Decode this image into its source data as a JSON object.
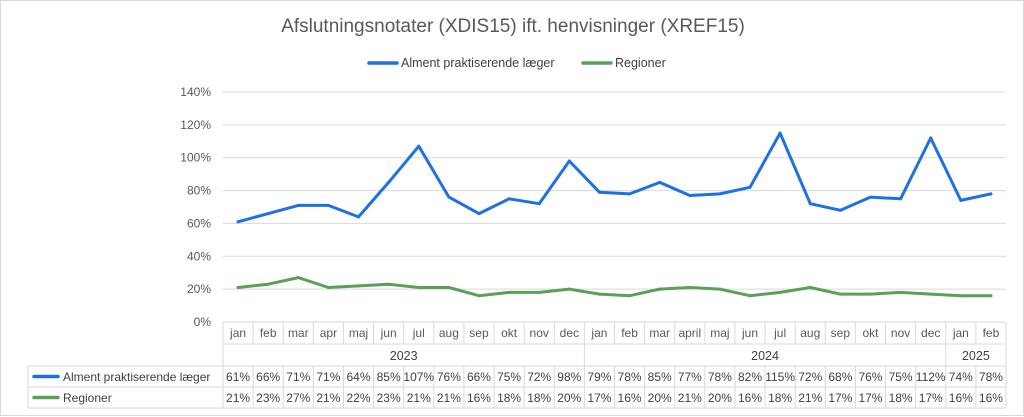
{
  "chart_data": {
    "type": "line",
    "title": "Afslutningsnotater (XDIS15) ift. henvisninger (XREF15)",
    "categories": [
      "jan",
      "feb",
      "mar",
      "apr",
      "maj",
      "jun",
      "jul",
      "aug",
      "sep",
      "okt",
      "nov",
      "dec",
      "jan",
      "feb",
      "mar",
      "april",
      "maj",
      "jun",
      "jul",
      "aug",
      "sep",
      "okt",
      "nov",
      "dec",
      "jan",
      "feb"
    ],
    "years": [
      {
        "label": "2023",
        "count": 12
      },
      {
        "label": "2024",
        "count": 12
      },
      {
        "label": "2025",
        "count": 2
      }
    ],
    "y_ticks": [
      "0%",
      "20%",
      "40%",
      "60%",
      "80%",
      "100%",
      "120%",
      "140%"
    ],
    "ylim": [
      0,
      140
    ],
    "grid": true,
    "legend_position": "top",
    "series": [
      {
        "name": "Alment praktiserende læger",
        "color": "#1f6fe5",
        "values": [
          61,
          66,
          71,
          71,
          64,
          85,
          107,
          76,
          66,
          75,
          72,
          98,
          79,
          78,
          85,
          77,
          78,
          82,
          115,
          72,
          68,
          76,
          75,
          112,
          74,
          78
        ],
        "labels": [
          "61%",
          "66%",
          "71%",
          "71%",
          "64%",
          "85%",
          "107%",
          "76%",
          "66%",
          "75%",
          "72%",
          "98%",
          "79%",
          "78%",
          "85%",
          "77%",
          "78%",
          "82%",
          "115%",
          "72%",
          "68%",
          "76%",
          "75%",
          "112%",
          "74%",
          "78%"
        ]
      },
      {
        "name": "Regioner",
        "color": "#5aa05a",
        "values": [
          21,
          23,
          27,
          21,
          22,
          23,
          21,
          21,
          16,
          18,
          18,
          20,
          17,
          16,
          20,
          21,
          20,
          16,
          18,
          21,
          17,
          17,
          18,
          17,
          16,
          16
        ],
        "labels": [
          "21%",
          "23%",
          "27%",
          "21%",
          "22%",
          "23%",
          "21%",
          "21%",
          "16%",
          "18%",
          "18%",
          "20%",
          "17%",
          "16%",
          "20%",
          "21%",
          "20%",
          "16%",
          "18%",
          "21%",
          "17%",
          "17%",
          "18%",
          "17%",
          "16%",
          "16%"
        ]
      }
    ]
  }
}
